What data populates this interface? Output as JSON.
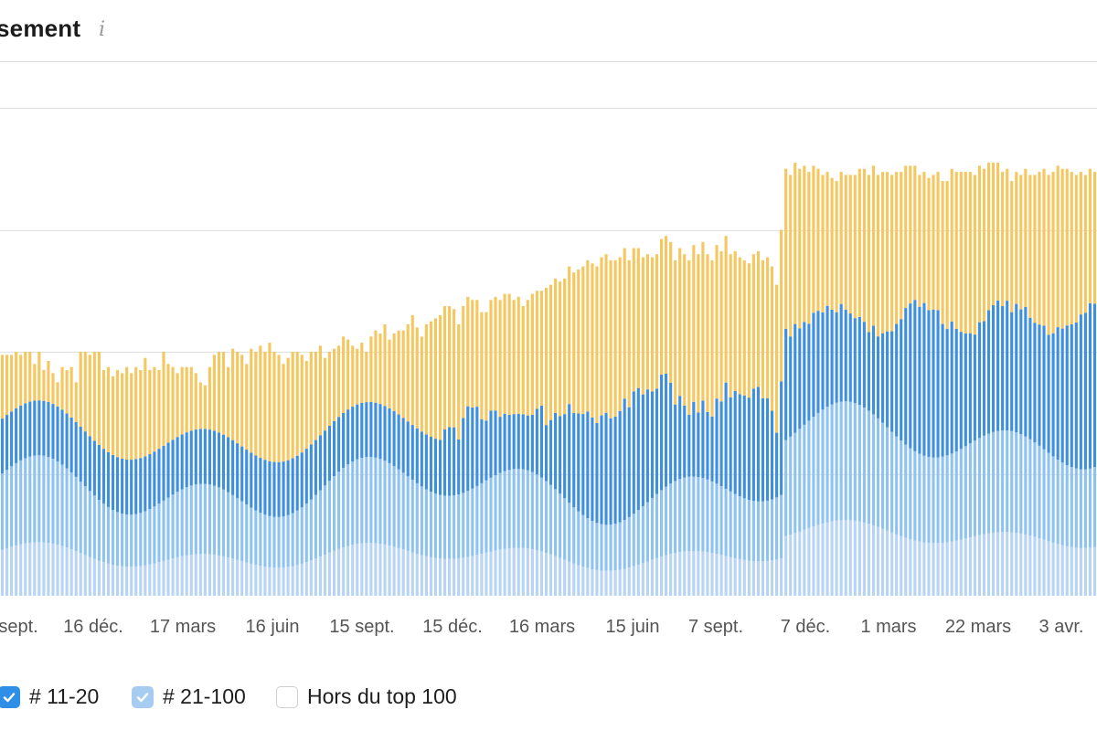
{
  "header": {
    "title": "sement",
    "info_icon": "info-icon"
  },
  "colors": {
    "top3": "#b7d4f4",
    "pos_4_10": "#8ec2f0",
    "pos_11_20": "#3f8fdf",
    "pos_21_100": "#f4c760",
    "gridline": "#e3e3e3",
    "legend_11_20": "#2f8fe6",
    "legend_21_100": "#a6cdf1"
  },
  "legend": {
    "items": [
      {
        "label": "# 11-20",
        "checked": true,
        "color": "#2f8fe6",
        "icon": "check-icon"
      },
      {
        "label": "# 21-100",
        "checked": true,
        "color": "#a6cdf1",
        "icon": "check-icon"
      },
      {
        "label": "Hors du top 100",
        "checked": false
      }
    ]
  },
  "chart_data": {
    "type": "bar",
    "stacked": true,
    "grid": true,
    "x_tick_labels": [
      "sept.",
      "16 déc.",
      "17 mars",
      "16 juin",
      "15 sept.",
      "15 déc.",
      "16 mars",
      "15 juin",
      "7 sept.",
      "7 déc.",
      "1 mars",
      "22 mars",
      "3 avr."
    ],
    "series_order": [
      "top3",
      "pos_4_10",
      "pos_11_20",
      "pos_21_100"
    ],
    "series": [
      {
        "key": "top3",
        "values": []
      },
      {
        "key": "pos_4_10",
        "values": []
      },
      {
        "key": "pos_11_20",
        "values": []
      },
      {
        "key": "pos_21_100",
        "values": []
      }
    ],
    "totals_per_bar": [
      79,
      79,
      79,
      80,
      79,
      80,
      80,
      76,
      80,
      74,
      77,
      73,
      70,
      75,
      74,
      75,
      70,
      80,
      80,
      79,
      80,
      80,
      74,
      75,
      72,
      74,
      73,
      75,
      73,
      75,
      74,
      78,
      74,
      75,
      74,
      80,
      76,
      75,
      73,
      75,
      75,
      75,
      73,
      70,
      69,
      75,
      79,
      80,
      80,
      75,
      81,
      80,
      79,
      76,
      81,
      80,
      82,
      80,
      83,
      80,
      79,
      76,
      78,
      80,
      80,
      79,
      77,
      80,
      80,
      82,
      78,
      80,
      81,
      82,
      85,
      84,
      82,
      81,
      83,
      80,
      85,
      87,
      86,
      89,
      84,
      86,
      87,
      87,
      89,
      92,
      88,
      85,
      89,
      90,
      91,
      92,
      95,
      95,
      94,
      89,
      95,
      98,
      97,
      97,
      93,
      93,
      97,
      98,
      97,
      99,
      99,
      97,
      98,
      95,
      97,
      99,
      100,
      100,
      101,
      102,
      104,
      103,
      104,
      108,
      106,
      107,
      108,
      110,
      109,
      108,
      111,
      112,
      110,
      110,
      111,
      114,
      110,
      114,
      114,
      111,
      112,
      111,
      112,
      117,
      118,
      116,
      110,
      114,
      112,
      110,
      115,
      112,
      116,
      112,
      110,
      115,
      113,
      118,
      112,
      113,
      111,
      110,
      109,
      112,
      113,
      110,
      111,
      108,
      102,
      120,
      140,
      138,
      142,
      140,
      141,
      139,
      141,
      140,
      138,
      139,
      137,
      136,
      139,
      138,
      138,
      138,
      140,
      140,
      138,
      141,
      138,
      139,
      139,
      138,
      139,
      139,
      141,
      141,
      141,
      138,
      139,
      137,
      138,
      139,
      136,
      136,
      140,
      139,
      139,
      139,
      139,
      138,
      141,
      140,
      142,
      142,
      142,
      139,
      140,
      136,
      139,
      138,
      140,
      138,
      138,
      139,
      140,
      138,
      139,
      141,
      140,
      140,
      139,
      138,
      139,
      138,
      140,
      139
    ],
    "ylim": [
      0,
      160
    ]
  }
}
